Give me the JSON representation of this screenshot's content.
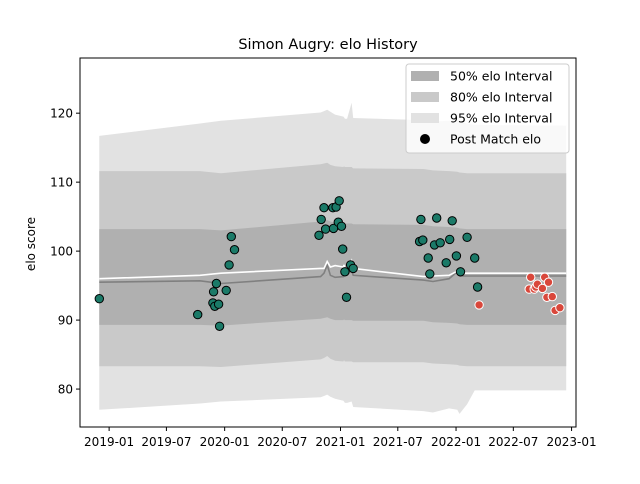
{
  "chart_data": {
    "type": "scatter",
    "title": "Simon Augry: elo History",
    "ylabel": "elo score",
    "xlabel": "",
    "xlim": [
      "2018-10-01",
      "2023-01-15"
    ],
    "ylim": [
      74.5,
      128
    ],
    "x_ticks": [
      "2019-01",
      "2019-07",
      "2020-01",
      "2020-07",
      "2021-01",
      "2021-07",
      "2022-01",
      "2022-07",
      "2023-01"
    ],
    "y_ticks": [
      80,
      90,
      100,
      110,
      120
    ],
    "legend_position": "upper right",
    "legend": [
      {
        "label": "50% elo Interval",
        "kind": "patch",
        "color": "#b0b0b0"
      },
      {
        "label": "80% elo Interval",
        "kind": "patch",
        "color": "#c9c9c9"
      },
      {
        "label": "95% elo Interval",
        "kind": "patch",
        "color": "#e2e2e2"
      },
      {
        "label": "Post Match elo",
        "kind": "marker",
        "color": "#000000"
      }
    ],
    "colors": {
      "band_50": "#b0b0b0",
      "band_80": "#c9c9c9",
      "band_95": "#e2e2e2",
      "median_line": "#808080",
      "mean_line": "#ffffff",
      "point_green": "#1b7a68",
      "point_red": "#d9473b",
      "point_edge_green": "#000000",
      "point_edge_red": "#ffffff"
    },
    "intervals": {
      "x": [
        "2018-12-01",
        "2019-10-15",
        "2019-12-20",
        "2020-10-30",
        "2020-11-10",
        "2020-11-20",
        "2020-11-30",
        "2020-12-15",
        "2021-01-10",
        "2021-01-12",
        "2021-01-15",
        "2021-01-22",
        "2021-02-05",
        "2021-02-10",
        "2021-09-20",
        "2021-10-20",
        "2021-12-10",
        "2022-01-05",
        "2022-01-12",
        "2022-02-05",
        "2022-03-01",
        "2022-12-15"
      ],
      "median": [
        95.5,
        95.7,
        95.3,
        96.3,
        96.8,
        98.0,
        96.5,
        96.2,
        96.3,
        97.2,
        96.8,
        96.6,
        97.2,
        96.5,
        95.8,
        95.6,
        96.0,
        97.0,
        96.4,
        96.4,
        96.4,
        96.4
      ],
      "mean": [
        96.0,
        96.5,
        96.8,
        97.5,
        97.5,
        98.5,
        97.7,
        97.9,
        97.7,
        98.0,
        97.3,
        97.3,
        98.6,
        97.5,
        96.3,
        96.4,
        96.5,
        97.1,
        96.8,
        96.8,
        96.8,
        96.8
      ],
      "p25": [
        89.3,
        89.3,
        89.2,
        90.2,
        90.3,
        90.4,
        90.2,
        90.0,
        90.0,
        90.1,
        90.0,
        90.0,
        90.0,
        89.9,
        89.9,
        89.7,
        89.6,
        89.5,
        89.4,
        89.3,
        89.3,
        89.3
      ],
      "p75": [
        103.2,
        103.2,
        103.0,
        104.3,
        104.4,
        104.5,
        104.3,
        104.1,
        104.0,
        104.1,
        104.0,
        104.0,
        104.0,
        103.9,
        103.8,
        103.6,
        103.5,
        103.4,
        103.3,
        103.2,
        103.2,
        103.2
      ],
      "p10": [
        83.3,
        83.3,
        83.2,
        84.3,
        84.5,
        84.8,
        84.4,
        84.1,
        84.0,
        84.2,
        84.0,
        84.0,
        84.0,
        83.9,
        83.9,
        83.7,
        83.6,
        83.5,
        83.4,
        83.3,
        83.3,
        83.3
      ],
      "p90": [
        111.6,
        111.6,
        111.3,
        112.6,
        112.7,
        112.8,
        112.5,
        112.3,
        112.2,
        112.3,
        112.2,
        112.2,
        112.2,
        112.0,
        111.9,
        111.7,
        111.6,
        111.5,
        111.4,
        111.3,
        111.3,
        111.3
      ],
      "p2_5": [
        77.0,
        77.9,
        78.2,
        78.8,
        79.0,
        79.2,
        78.9,
        78.6,
        78.3,
        78.2,
        78.0,
        78.0,
        78.2,
        77.4,
        76.8,
        76.6,
        77.2,
        77.0,
        76.4,
        77.8,
        79.8,
        79.8
      ],
      "p97_5": [
        116.7,
        118.5,
        118.9,
        120.1,
        120.3,
        120.5,
        120.2,
        119.8,
        119.5,
        119.4,
        119.2,
        119.2,
        121.5,
        119.3,
        119.0,
        118.8,
        118.9,
        119.2,
        118.7,
        118.5,
        118.3,
        118.2
      ]
    },
    "series": [
      {
        "name": "Post Match elo",
        "color": "#1b7a68",
        "x": [
          "2018-12-01",
          "2019-10-08",
          "2019-11-25",
          "2019-11-27",
          "2019-12-01",
          "2019-12-06",
          "2019-12-13",
          "2019-12-16",
          "2020-01-06",
          "2020-01-15",
          "2020-01-22",
          "2020-02-01",
          "2020-10-25",
          "2020-11-01",
          "2020-11-10",
          "2020-11-15",
          "2020-12-08",
          "2020-12-10",
          "2020-12-18",
          "2020-12-25",
          "2020-12-28",
          "2021-01-04",
          "2021-01-08",
          "2021-01-15",
          "2021-01-20",
          "2021-02-02",
          "2021-02-10",
          "2021-09-08",
          "2021-09-12",
          "2021-09-18",
          "2021-10-05",
          "2021-10-10",
          "2021-10-25",
          "2021-11-01",
          "2021-11-12",
          "2021-12-01",
          "2021-12-12",
          "2021-12-20",
          "2022-01-02",
          "2022-01-15",
          "2022-02-05",
          "2022-03-01",
          "2022-03-10"
        ],
        "y": [
          93.1,
          90.8,
          92.5,
          94.1,
          92.0,
          95.3,
          92.3,
          89.1,
          94.3,
          98.0,
          102.1,
          100.2,
          102.3,
          104.6,
          106.3,
          103.2,
          106.3,
          103.3,
          106.4,
          104.2,
          107.3,
          103.6,
          100.3,
          97.0,
          93.3,
          98.0,
          97.5,
          101.4,
          104.6,
          101.6,
          99.0,
          96.7,
          100.9,
          104.8,
          101.2,
          98.3,
          101.7,
          104.4,
          99.3,
          97.0,
          102.0,
          99.0,
          94.8
        ]
      },
      {
        "name": "",
        "color": "#d9473b",
        "x": [
          "2022-03-15",
          "2022-08-20",
          "2022-08-25",
          "2022-09-05",
          "2022-09-10",
          "2022-09-15",
          "2022-10-01",
          "2022-10-08",
          "2022-10-15",
          "2022-10-20",
          "2022-11-01",
          "2022-11-10",
          "2022-11-25"
        ],
        "y": [
          92.2,
          94.5,
          96.2,
          94.5,
          94.8,
          95.2,
          94.6,
          96.2,
          93.3,
          95.5,
          93.4,
          91.4,
          91.8
        ]
      }
    ]
  }
}
